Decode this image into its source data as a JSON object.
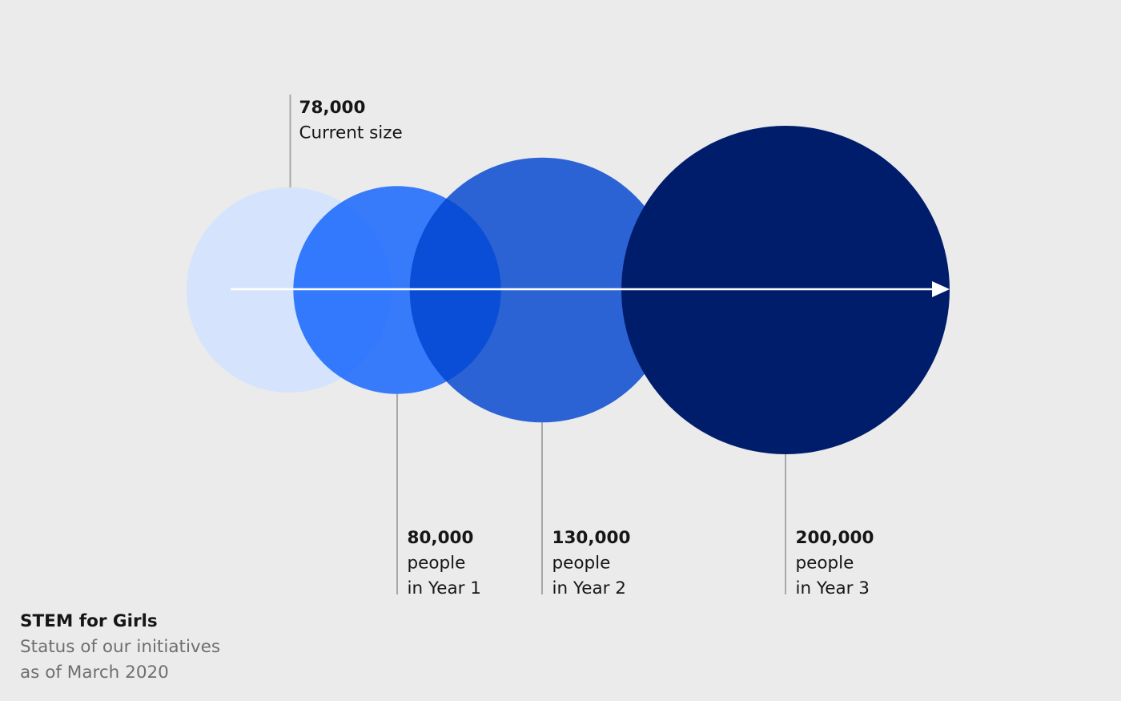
{
  "chart_data": {
    "type": "bubble",
    "unit": "people",
    "points": [
      {
        "value": 78000,
        "value_label": "78,000",
        "label_lines": [
          "Current size"
        ],
        "color": "#d0e2ff"
      },
      {
        "value": 80000,
        "value_label": "80,000",
        "label_lines": [
          "people",
          "in Year 1"
        ],
        "color": "#0f62fe"
      },
      {
        "value": 130000,
        "value_label": "130,000",
        "label_lines": [
          "people",
          "in Year 2"
        ],
        "color": "#0043ce"
      },
      {
        "value": 200000,
        "value_label": "200,000",
        "label_lines": [
          "people",
          "in Year 3"
        ],
        "color": "#001d6c"
      }
    ],
    "arrow_color": "#ffffff",
    "leader_color": "#a8a8a8"
  },
  "caption": {
    "title": "STEM for Girls",
    "subtitle_line1": "Status of our initiatives",
    "subtitle_line2": "as of March 2020"
  }
}
